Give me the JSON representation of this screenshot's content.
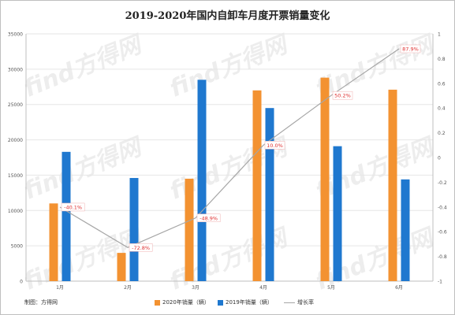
{
  "title": "2019-2020年国内自卸车月度开票销量变化",
  "credit": "制图：方得网",
  "watermark_text": "find方得网",
  "colors": {
    "series_2020": "#f39231",
    "series_2019": "#1f78cf",
    "growth_line": "#a6a6a6",
    "label_text": "#e03030"
  },
  "legend": [
    {
      "name": "2020年销量（辆）",
      "kind": "bar",
      "color_key": "series_2020"
    },
    {
      "name": "2019年销量（辆）",
      "kind": "bar",
      "color_key": "series_2019"
    },
    {
      "name": "增长率",
      "kind": "line",
      "color_key": "growth_line"
    }
  ],
  "chart_data": {
    "type": "bar",
    "categories": [
      "1月",
      "2月",
      "3月",
      "4月",
      "5月",
      "6月"
    ],
    "series": [
      {
        "name": "2020年销量（辆）",
        "values": [
          11000,
          4000,
          14500,
          27000,
          28800,
          27100
        ]
      },
      {
        "name": "2019年销量（辆）",
        "values": [
          18300,
          14600,
          28500,
          24500,
          19100,
          14400
        ]
      }
    ],
    "line_series": {
      "name": "增长率",
      "axis": "right",
      "values": [
        -0.401,
        -0.728,
        -0.489,
        0.1,
        0.502,
        0.879
      ],
      "labels": [
        "-40.1%",
        "-72.8%",
        "-48.9%",
        "10.0%",
        "50.2%",
        "87.9%"
      ]
    },
    "ylim": [
      0,
      35000
    ],
    "yticks": [
      0,
      5000,
      10000,
      15000,
      20000,
      25000,
      30000,
      35000
    ],
    "ylim_right": [
      -1,
      1
    ],
    "yticks_right": [
      -1,
      -0.8,
      -0.6,
      -0.4,
      -0.2,
      0,
      0.2,
      0.4,
      0.6,
      0.8,
      1
    ],
    "ytick_labels_right": [
      "-1",
      "-0.8",
      "-0.6",
      "-0.4",
      "-0.2",
      "0",
      "0.2",
      "0.4",
      "0.6",
      "0.8",
      "1"
    ],
    "grid": true,
    "legend_position": "bottom"
  }
}
